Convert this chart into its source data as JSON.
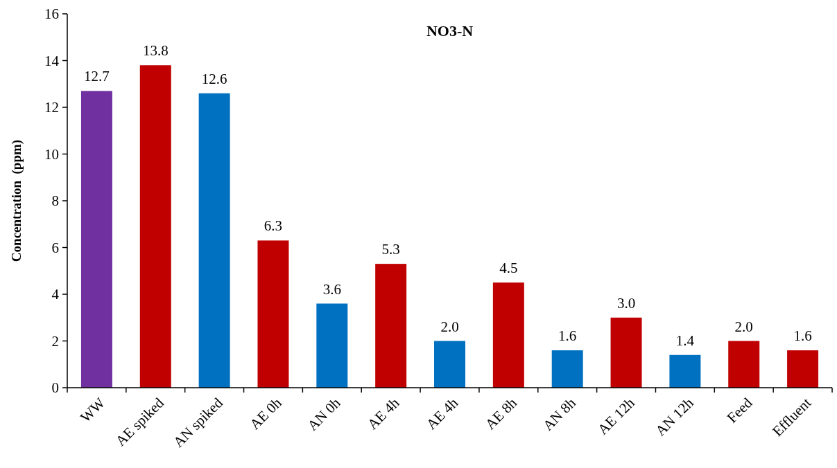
{
  "chart_data": {
    "type": "bar",
    "title": "NO3-N",
    "ylabel": "Concentration  (ppm)",
    "categories": [
      "WW",
      "AE spiked",
      "AN spiked",
      "AE 0h",
      "AN 0h",
      "AE 4h",
      "AE 4h",
      "AE 8h",
      "AN 8h",
      "AE 12h",
      "AN 12h",
      "Feed",
      "Effluent"
    ],
    "values": [
      12.7,
      13.8,
      12.6,
      6.3,
      3.6,
      5.3,
      2.0,
      4.5,
      1.6,
      3.0,
      1.4,
      2.0,
      1.6
    ],
    "value_labels": [
      "12.7",
      "13.8",
      "12.6",
      "6.3",
      "3.6",
      "5.3",
      "2.0",
      "4.5",
      "1.6",
      "3.0",
      "1.4",
      "2.0",
      "1.6"
    ],
    "colors": [
      "#7030a0",
      "#c00000",
      "#0070c0",
      "#c00000",
      "#0070c0",
      "#c00000",
      "#0070c0",
      "#c00000",
      "#0070c0",
      "#c00000",
      "#0070c0",
      "#c00000",
      "#c00000"
    ],
    "ylim": [
      0,
      16
    ],
    "yticks": [
      0,
      2,
      4,
      6,
      8,
      10,
      12,
      14,
      16
    ],
    "grid": false
  }
}
